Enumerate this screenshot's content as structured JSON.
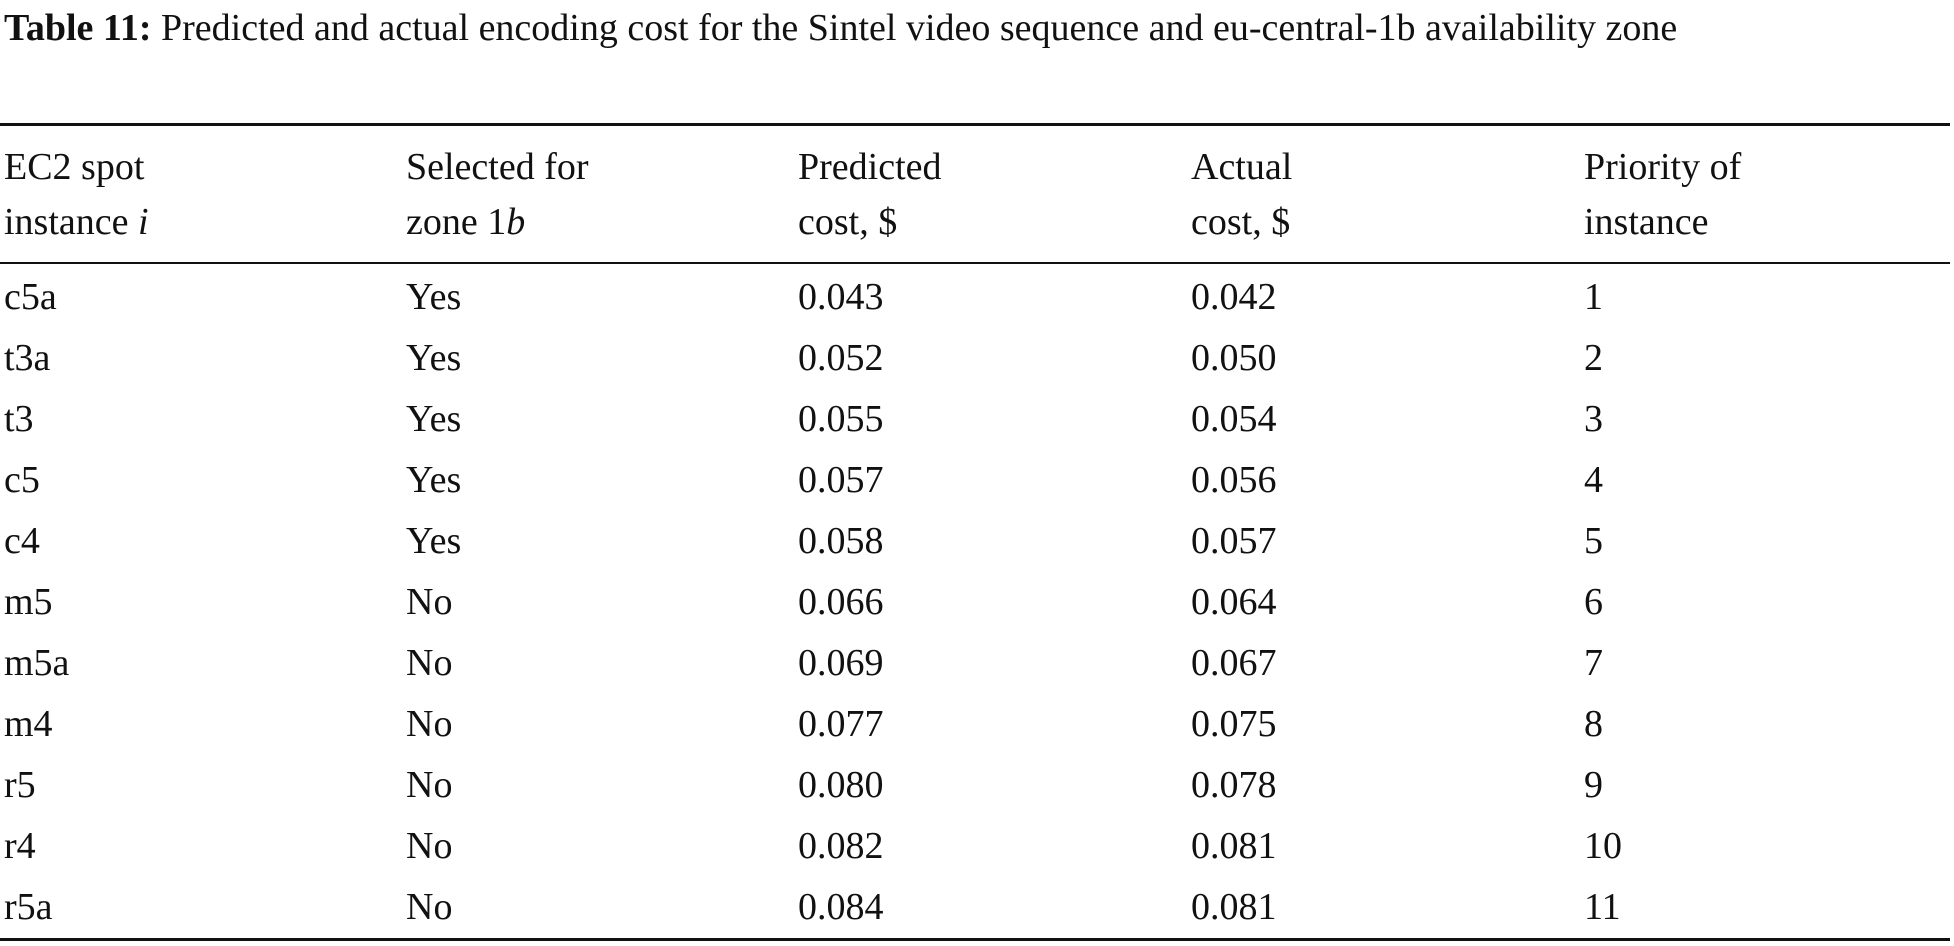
{
  "caption": {
    "label": "Table 11:",
    "text": "Predicted and actual encoding cost for the Sintel video sequence and eu-central-1b availability zone"
  },
  "table": {
    "headers": [
      {
        "line1": "EC2 spot",
        "line2_text": "instance ",
        "line2_italic": "i"
      },
      {
        "line1": "Selected for",
        "line2_text": "zone 1",
        "line2_italic": "b"
      },
      {
        "line1": "Predicted",
        "line2_text": "cost, $",
        "line2_italic": ""
      },
      {
        "line1": "Actual",
        "line2_text": "cost, $",
        "line2_italic": ""
      },
      {
        "line1": "Priority of",
        "line2_text": "instance",
        "line2_italic": ""
      }
    ],
    "rows": [
      [
        "c5a",
        "Yes",
        "0.043",
        "0.042",
        "1"
      ],
      [
        "t3a",
        "Yes",
        "0.052",
        "0.050",
        "2"
      ],
      [
        "t3",
        "Yes",
        "0.055",
        "0.054",
        "3"
      ],
      [
        "c5",
        "Yes",
        "0.057",
        "0.056",
        "4"
      ],
      [
        "c4",
        "Yes",
        "0.058",
        "0.057",
        "5"
      ],
      [
        "m5",
        "No",
        "0.066",
        "0.064",
        "6"
      ],
      [
        "m5a",
        "No",
        "0.069",
        "0.067",
        "7"
      ],
      [
        "m4",
        "No",
        "0.077",
        "0.075",
        "8"
      ],
      [
        "r5",
        "No",
        "0.080",
        "0.078",
        "9"
      ],
      [
        "r4",
        "No",
        "0.082",
        "0.081",
        "10"
      ],
      [
        "r5a",
        "No",
        "0.084",
        "0.081",
        "11"
      ]
    ]
  }
}
